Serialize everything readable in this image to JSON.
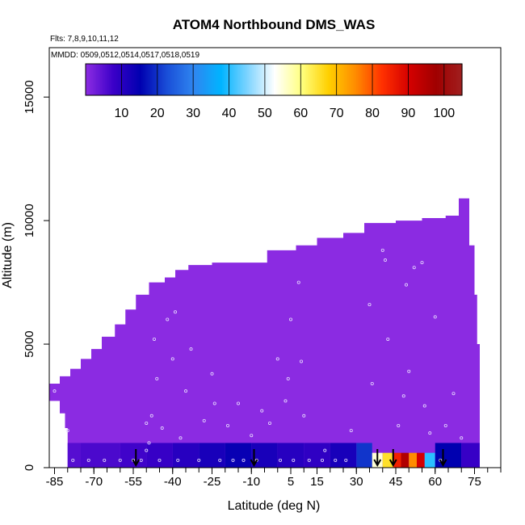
{
  "chart_data": {
    "type": "heatmap",
    "title": "ATOM4 Northbound DMS_WAS",
    "flights_label": "Flts: 7,8,9,10,11,12",
    "mmdd_label": "MMDD: 0509,0512,0514,0517,0518,0519",
    "xlabel": "Latitude (deg N)",
    "ylabel": "Altitude (m)",
    "xlim": [
      -87,
      85
    ],
    "ylim": [
      0,
      17000
    ],
    "xticks": [
      -85,
      -70,
      -55,
      -40,
      -25,
      -10,
      5,
      15,
      30,
      45,
      60,
      75
    ],
    "yticks": [
      0,
      5000,
      10000,
      15000
    ],
    "colorbar": {
      "min": 0,
      "max": 105,
      "ticks": [
        10,
        20,
        30,
        40,
        50,
        60,
        70,
        80,
        90,
        100
      ],
      "stops": [
        "#8b2be2",
        "#3b00c8",
        "#0000b0",
        "#1a4fd8",
        "#2f86f0",
        "#00b4ff",
        "#7fd4ff",
        "#ffffff",
        "#ffff80",
        "#ffd000",
        "#ff8c00",
        "#ff3000",
        "#d40000",
        "#a00000",
        "#a02020"
      ]
    },
    "curtain_top": [
      {
        "lat": -87,
        "alt": 3400
      },
      {
        "lat": -83,
        "alt": 3700
      },
      {
        "lat": -79,
        "alt": 4000
      },
      {
        "lat": -75,
        "alt": 4400
      },
      {
        "lat": -71,
        "alt": 4800
      },
      {
        "lat": -67,
        "alt": 5300
      },
      {
        "lat": -62,
        "alt": 5800
      },
      {
        "lat": -58,
        "alt": 6400
      },
      {
        "lat": -54,
        "alt": 7000
      },
      {
        "lat": -49,
        "alt": 7500
      },
      {
        "lat": -43,
        "alt": 7700
      },
      {
        "lat": -39,
        "alt": 8000
      },
      {
        "lat": -34,
        "alt": 8200
      },
      {
        "lat": -25,
        "alt": 8300
      },
      {
        "lat": -17,
        "alt": 8300
      },
      {
        "lat": -9,
        "alt": 8300
      },
      {
        "lat": -4,
        "alt": 8800
      },
      {
        "lat": 7,
        "alt": 9000
      },
      {
        "lat": 15,
        "alt": 9300
      },
      {
        "lat": 25,
        "alt": 9500
      },
      {
        "lat": 33,
        "alt": 9900
      },
      {
        "lat": 45,
        "alt": 10000
      },
      {
        "lat": 55,
        "alt": 10100
      },
      {
        "lat": 64,
        "alt": 10200
      },
      {
        "lat": 69,
        "alt": 10900
      },
      {
        "lat": 72,
        "alt": 10900
      },
      {
        "lat": 73,
        "alt": 9000
      },
      {
        "lat": 75,
        "alt": 7000
      },
      {
        "lat": 76,
        "alt": 5000
      },
      {
        "lat": 77,
        "alt": 2000
      },
      {
        "lat": 77,
        "alt": 900
      }
    ],
    "curtain_bottom_left": [
      {
        "lat": -87,
        "alt": 2700
      },
      {
        "lat": -83,
        "alt": 2200
      },
      {
        "lat": -81,
        "alt": 1600
      },
      {
        "lat": -80,
        "alt": 1000
      }
    ],
    "low_band": [
      {
        "lat": -80,
        "alt_top": 1000,
        "alt_bot": 0,
        "value": 5
      },
      {
        "lat": -75,
        "alt_top": 1000,
        "alt_bot": 0,
        "value": 6
      },
      {
        "lat": -60,
        "alt_top": 1000,
        "alt_bot": 0,
        "value": 7
      },
      {
        "lat": -50,
        "alt_top": 1000,
        "alt_bot": 0,
        "value": 8
      },
      {
        "lat": -40,
        "alt_top": 1000,
        "alt_bot": 0,
        "value": 10
      },
      {
        "lat": -30,
        "alt_top": 1000,
        "alt_bot": 0,
        "value": 12
      },
      {
        "lat": -20,
        "alt_top": 1000,
        "alt_bot": 0,
        "value": 14
      },
      {
        "lat": -10,
        "alt_top": 1000,
        "alt_bot": 0,
        "value": 12
      },
      {
        "lat": 0,
        "alt_top": 1000,
        "alt_bot": 0,
        "value": 10
      },
      {
        "lat": 10,
        "alt_top": 1000,
        "alt_bot": 0,
        "value": 9
      },
      {
        "lat": 20,
        "alt_top": 1000,
        "alt_bot": 0,
        "value": 12
      },
      {
        "lat": 30,
        "alt_top": 1000,
        "alt_bot": 0,
        "value": 20
      },
      {
        "lat": 36,
        "alt_top": 600,
        "alt_bot": 0,
        "value": 55
      },
      {
        "lat": 40,
        "alt_top": 600,
        "alt_bot": 0,
        "value": 65
      },
      {
        "lat": 44,
        "alt_top": 600,
        "alt_bot": 0,
        "value": 85
      },
      {
        "lat": 47,
        "alt_top": 600,
        "alt_bot": 0,
        "value": 95
      },
      {
        "lat": 50,
        "alt_top": 600,
        "alt_bot": 0,
        "value": 75
      },
      {
        "lat": 53,
        "alt_top": 600,
        "alt_bot": 0,
        "value": 90
      },
      {
        "lat": 56,
        "alt_top": 600,
        "alt_bot": 0,
        "value": 40
      },
      {
        "lat": 60,
        "alt_top": 1000,
        "alt_bot": 0,
        "value": 15
      },
      {
        "lat": 70,
        "alt_top": 1000,
        "alt_bot": 0,
        "value": 8
      }
    ],
    "arrows_lat": [
      -54,
      -9,
      38,
      44,
      63
    ],
    "sample_points": [
      {
        "lat": -85,
        "alt": 3100
      },
      {
        "lat": -80,
        "alt": 1500
      },
      {
        "lat": -78,
        "alt": 300
      },
      {
        "lat": -72,
        "alt": 300
      },
      {
        "lat": -66,
        "alt": 300
      },
      {
        "lat": -60,
        "alt": 300
      },
      {
        "lat": -55,
        "alt": 300
      },
      {
        "lat": -52,
        "alt": 300
      },
      {
        "lat": -50,
        "alt": 700
      },
      {
        "lat": -50,
        "alt": 1800
      },
      {
        "lat": -49,
        "alt": 1000
      },
      {
        "lat": -48,
        "alt": 2100
      },
      {
        "lat": -47,
        "alt": 5200
      },
      {
        "lat": -46,
        "alt": 3600
      },
      {
        "lat": -45,
        "alt": 300
      },
      {
        "lat": -44,
        "alt": 1600
      },
      {
        "lat": -42,
        "alt": 6000
      },
      {
        "lat": -40,
        "alt": 4400
      },
      {
        "lat": -39,
        "alt": 6300
      },
      {
        "lat": -38,
        "alt": 300
      },
      {
        "lat": -37,
        "alt": 1200
      },
      {
        "lat": -35,
        "alt": 3100
      },
      {
        "lat": -33,
        "alt": 4800
      },
      {
        "lat": -30,
        "alt": 300
      },
      {
        "lat": -28,
        "alt": 1900
      },
      {
        "lat": -25,
        "alt": 3800
      },
      {
        "lat": -24,
        "alt": 2600
      },
      {
        "lat": -22,
        "alt": 300
      },
      {
        "lat": -19,
        "alt": 1700
      },
      {
        "lat": -17,
        "alt": 300
      },
      {
        "lat": -15,
        "alt": 2600
      },
      {
        "lat": -13,
        "alt": 300
      },
      {
        "lat": -10,
        "alt": 1300
      },
      {
        "lat": -8,
        "alt": 300
      },
      {
        "lat": -6,
        "alt": 2300
      },
      {
        "lat": -3,
        "alt": 1800
      },
      {
        "lat": 0,
        "alt": 4400
      },
      {
        "lat": 1,
        "alt": 300
      },
      {
        "lat": 3,
        "alt": 2700
      },
      {
        "lat": 4,
        "alt": 3600
      },
      {
        "lat": 5,
        "alt": 6000
      },
      {
        "lat": 6,
        "alt": 300
      },
      {
        "lat": 8,
        "alt": 7500
      },
      {
        "lat": 9,
        "alt": 4300
      },
      {
        "lat": 10,
        "alt": 2100
      },
      {
        "lat": 12,
        "alt": 300
      },
      {
        "lat": 17,
        "alt": 300
      },
      {
        "lat": 18,
        "alt": 700
      },
      {
        "lat": 22,
        "alt": 300
      },
      {
        "lat": 26,
        "alt": 300
      },
      {
        "lat": 28,
        "alt": 1500
      },
      {
        "lat": 35,
        "alt": 6600
      },
      {
        "lat": 36,
        "alt": 3400
      },
      {
        "lat": 40,
        "alt": 8800
      },
      {
        "lat": 41,
        "alt": 8400
      },
      {
        "lat": 42,
        "alt": 5200
      },
      {
        "lat": 46,
        "alt": 1700
      },
      {
        "lat": 48,
        "alt": 2900
      },
      {
        "lat": 49,
        "alt": 7400
      },
      {
        "lat": 50,
        "alt": 3900
      },
      {
        "lat": 52,
        "alt": 8100
      },
      {
        "lat": 55,
        "alt": 8300
      },
      {
        "lat": 56,
        "alt": 2500
      },
      {
        "lat": 58,
        "alt": 1400
      },
      {
        "lat": 60,
        "alt": 6100
      },
      {
        "lat": 62,
        "alt": 300
      },
      {
        "lat": 64,
        "alt": 1700
      },
      {
        "lat": 67,
        "alt": 3000
      },
      {
        "lat": 70,
        "alt": 1200
      }
    ]
  }
}
